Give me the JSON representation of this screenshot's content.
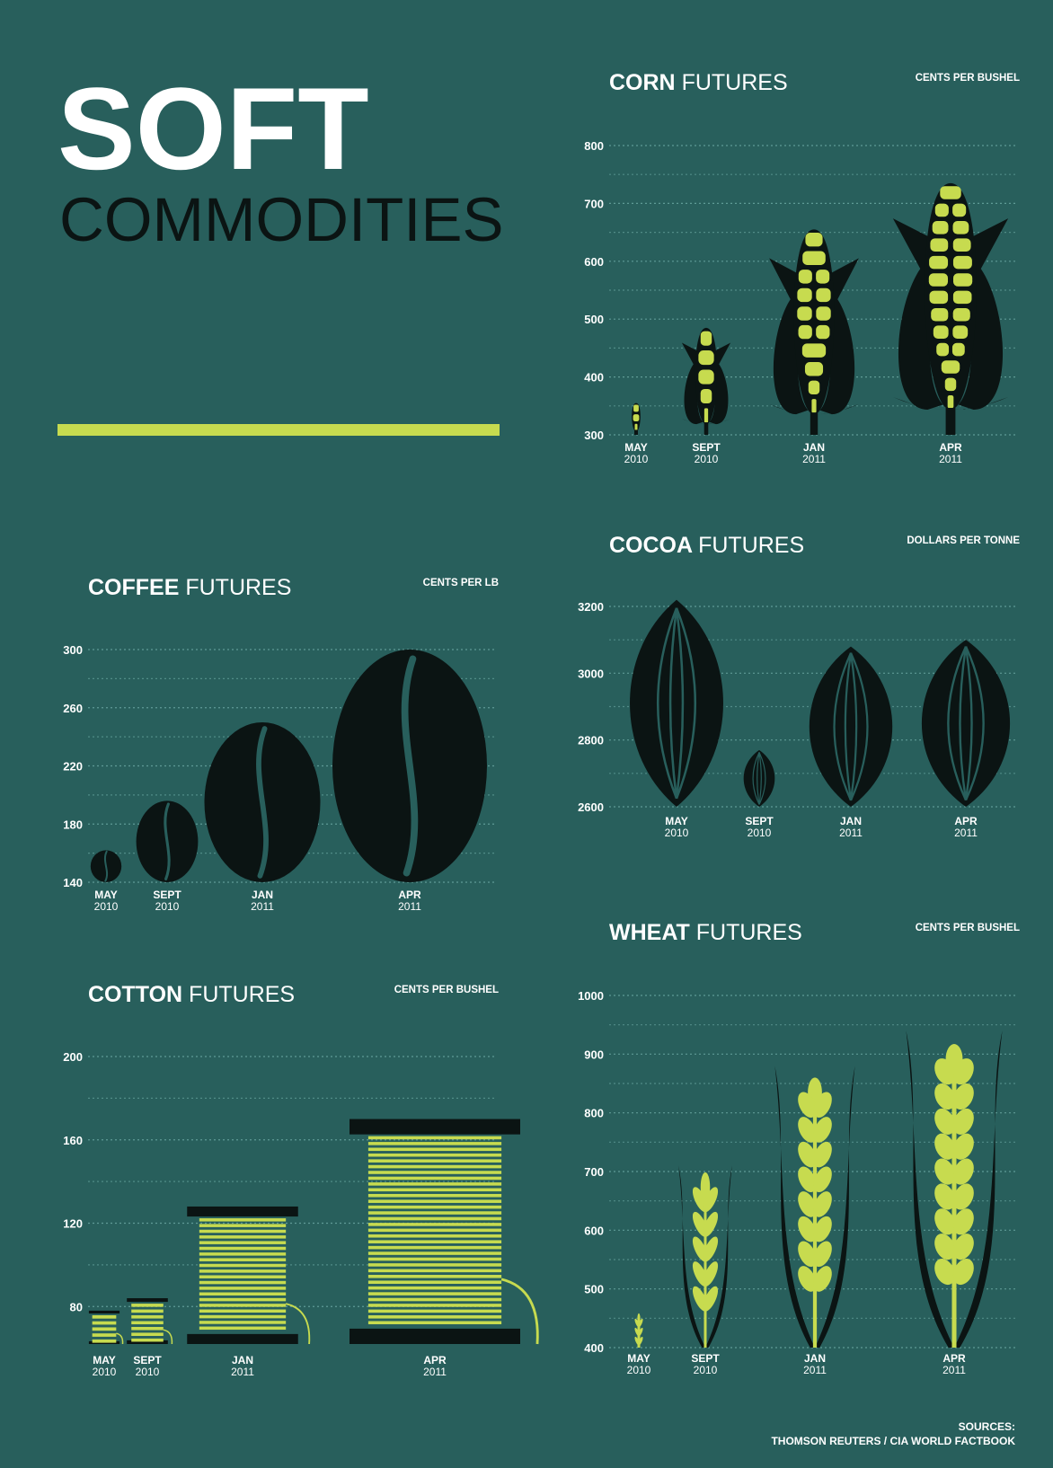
{
  "title": {
    "line1": "SOFT",
    "line2": "COMMODITIES"
  },
  "colors": {
    "background": "#285f5c",
    "accent": "#c7db4f",
    "dark": "#0b1413",
    "grid": "#5f9b96"
  },
  "sources": {
    "label": "SOURCES:",
    "text": "THOMSON REUTERS / CIA WORLD FACTBOOK"
  },
  "chart_data": [
    {
      "id": "corn",
      "type": "bar",
      "icon": "corn-cob-icon",
      "title_bold": "CORN",
      "title_light": "FUTURES",
      "unit": "CENTS PER BUSHEL",
      "categories": [
        [
          "MAY",
          "2010"
        ],
        [
          "SEPT",
          "2010"
        ],
        [
          "JAN",
          "2011"
        ],
        [
          "APR",
          "2011"
        ]
      ],
      "values": [
        355,
        485,
        655,
        735
      ],
      "ylim": [
        300,
        800
      ],
      "yticks": [
        300,
        400,
        500,
        600,
        700,
        800
      ],
      "widths": [
        0.15,
        0.38,
        0.7,
        0.9
      ]
    },
    {
      "id": "coffee",
      "type": "bar",
      "icon": "coffee-bean-icon",
      "title_bold": "COFFEE",
      "title_light": "FUTURES",
      "unit": "CENTS PER LB",
      "categories": [
        [
          "MAY",
          "2010"
        ],
        [
          "SEPT",
          "2010"
        ],
        [
          "JAN",
          "2011"
        ],
        [
          "APR",
          "2011"
        ]
      ],
      "values": [
        162,
        196,
        250,
        300
      ],
      "ylim": [
        140,
        300
      ],
      "yticks": [
        140,
        180,
        220,
        260,
        300
      ],
      "widths": [
        0.2,
        0.4,
        0.75,
        1.0
      ]
    },
    {
      "id": "cocoa",
      "type": "bar",
      "icon": "cocoa-pod-icon",
      "title_bold": "COCOA",
      "title_light": "FUTURES",
      "unit": "DOLLARS PER TONNE",
      "categories": [
        [
          "MAY",
          "2010"
        ],
        [
          "SEPT",
          "2010"
        ],
        [
          "JAN",
          "2011"
        ],
        [
          "APR",
          "2011"
        ]
      ],
      "values": [
        3220,
        2770,
        3080,
        3100
      ],
      "ylim": [
        2600,
        3200
      ],
      "yticks": [
        2600,
        2800,
        3000,
        3200
      ],
      "widths": [
        0.9,
        0.3,
        0.8,
        0.85
      ]
    },
    {
      "id": "cotton",
      "type": "bar",
      "icon": "cotton-spool-icon",
      "title_bold": "COTTON",
      "title_light": "FUTURES",
      "unit": "CENTS PER BUSHEL",
      "categories": [
        [
          "MAY",
          "2010"
        ],
        [
          "SEPT",
          "2010"
        ],
        [
          "JAN",
          "2011"
        ],
        [
          "APR",
          "2011"
        ]
      ],
      "values": [
        78,
        84,
        128,
        170
      ],
      "ylim": [
        62,
        200
      ],
      "yticks": [
        80,
        120,
        160,
        200
      ],
      "widths": [
        0.18,
        0.24,
        0.65,
        1.0
      ]
    },
    {
      "id": "wheat",
      "type": "bar",
      "icon": "wheat-stalk-icon",
      "title_bold": "WHEAT",
      "title_light": "FUTURES",
      "unit": "CENTS PER BUSHEL",
      "categories": [
        [
          "MAY",
          "2010"
        ],
        [
          "SEPT",
          "2010"
        ],
        [
          "JAN",
          "2011"
        ],
        [
          "APR",
          "2011"
        ]
      ],
      "values": [
        460,
        710,
        880,
        940
      ],
      "ylim": [
        400,
        1000
      ],
      "yticks": [
        400,
        500,
        600,
        700,
        800,
        900,
        1000
      ],
      "widths": [
        0.15,
        0.5,
        0.75,
        0.9
      ]
    }
  ]
}
